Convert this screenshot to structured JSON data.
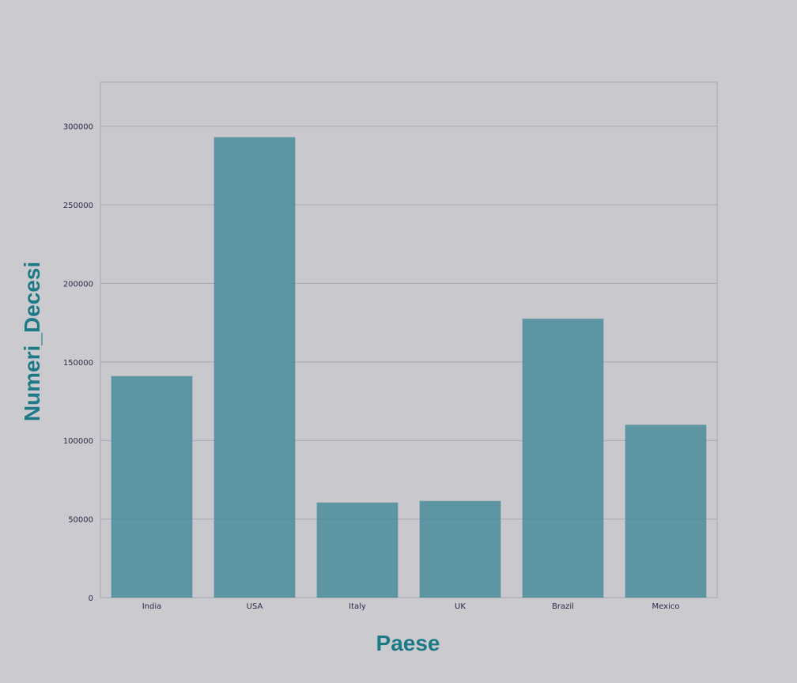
{
  "chart_data": {
    "type": "bar",
    "title": "",
    "xlabel": "Paese",
    "ylabel": "Numeri_Decesi",
    "categories": [
      "India",
      "USA",
      "Italy",
      "UK",
      "Brazil",
      "Mexico"
    ],
    "values": [
      141000,
      293000,
      60500,
      61500,
      177500,
      110000
    ],
    "ylim": [
      0,
      328000
    ],
    "yticks": [
      0,
      50000,
      100000,
      150000,
      200000,
      250000,
      300000
    ],
    "ytick_labels": [
      "0",
      "50000",
      "100000",
      "150000",
      "200000",
      "250000",
      "300000"
    ],
    "grid": true,
    "colors": {
      "page_bg": "#cbcbcf",
      "plot_bg": "#c9c9cd",
      "plot_border": "#a6a6b4",
      "grid": "#a6a6b4",
      "bar": "#4a8c9a",
      "tick_text": "#2b2b4a",
      "axis_title": "#1c7a86"
    }
  }
}
